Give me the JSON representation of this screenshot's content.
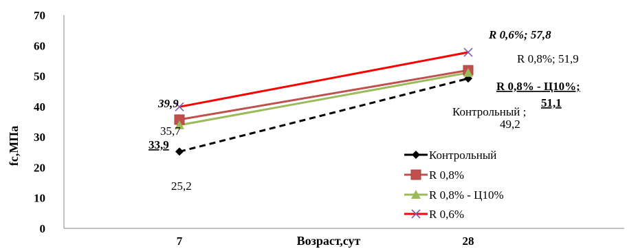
{
  "chart_data": {
    "type": "line",
    "ylabel": "fc,МПа",
    "xlabel": "Возраст,сут",
    "ylim": [
      0,
      70
    ],
    "yticks": [
      0,
      10,
      20,
      30,
      40,
      50,
      60,
      70
    ],
    "categories": [
      "7",
      "28"
    ],
    "grid": false,
    "legend_position": "right",
    "series": [
      {
        "name": "Контрольный",
        "values": [
          25.2,
          49.2
        ],
        "color": "#000000",
        "marker": "diamond",
        "dash": true
      },
      {
        "name": "R 0,8%",
        "values": [
          35.7,
          51.9
        ],
        "color": "#C0504D",
        "marker": "square",
        "dash": false
      },
      {
        "name": "R 0,8%  - Ц10%",
        "values": [
          33.9,
          51.1
        ],
        "color": "#9BBB59",
        "marker": "triangle",
        "dash": false
      },
      {
        "name": "R 0,6%",
        "values": [
          39.9,
          57.8
        ],
        "color": "#FF0000",
        "marker": "x",
        "dash": false
      }
    ],
    "data_labels": [
      {
        "text": "25,2",
        "style": "normal"
      },
      {
        "text": "35,7",
        "style": "normal"
      },
      {
        "text": "33,9",
        "style": "bold-underline"
      },
      {
        "text": "39,9",
        "style": "bold-italic"
      },
      {
        "text": "Контрольный ;",
        "style": "normal"
      },
      {
        "text": "49,2",
        "style": "normal"
      },
      {
        "text": "R 0,8%; 51,9",
        "style": "normal"
      },
      {
        "text": "R 0,8%  - Ц10%;",
        "style": "bold-underline"
      },
      {
        "text": "51,1",
        "style": "bold-underline"
      },
      {
        "text": "R 0,6%; 57,8",
        "style": "bold-italic"
      }
    ]
  }
}
